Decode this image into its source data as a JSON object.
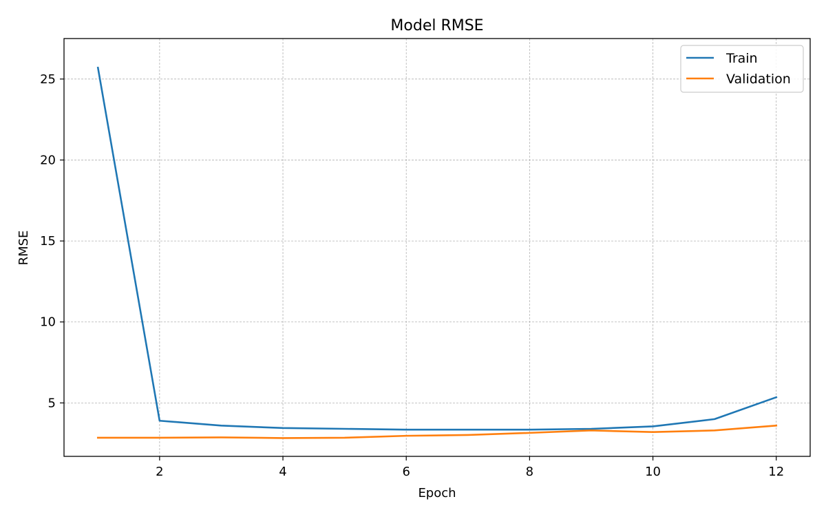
{
  "chart_data": {
    "type": "line",
    "title": "Model RMSE",
    "xlabel": "Epoch",
    "ylabel": "RMSE",
    "x": [
      1,
      2,
      3,
      4,
      5,
      6,
      7,
      8,
      9,
      10,
      11,
      12
    ],
    "xlim": [
      0.45,
      12.55
    ],
    "ylim": [
      1.7,
      27.5
    ],
    "xticks": [
      2,
      4,
      6,
      8,
      10,
      12
    ],
    "yticks": [
      5,
      10,
      15,
      20,
      25
    ],
    "grid": true,
    "legend_position": "top-right",
    "series": [
      {
        "name": "Train",
        "color": "#1f77b4",
        "values": [
          25.7,
          3.9,
          3.6,
          3.45,
          3.4,
          3.35,
          3.35,
          3.35,
          3.4,
          3.55,
          4.0,
          5.35
        ]
      },
      {
        "name": "Validation",
        "color": "#ff7f0e",
        "values": [
          2.85,
          2.85,
          2.87,
          2.83,
          2.85,
          2.97,
          3.02,
          3.15,
          3.3,
          3.2,
          3.3,
          3.6
        ]
      }
    ]
  }
}
